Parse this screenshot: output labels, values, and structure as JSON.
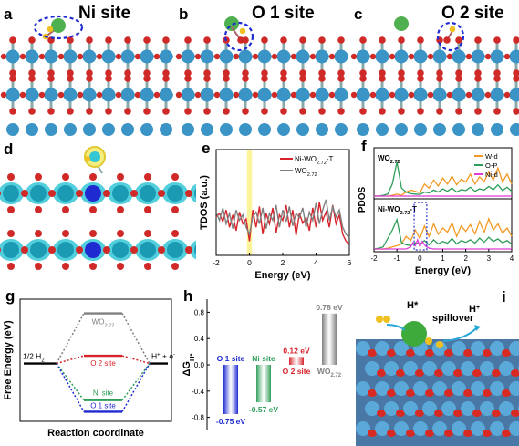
{
  "panel_a": {
    "letter": "a",
    "title": "Ni site"
  },
  "panel_b": {
    "letter": "b",
    "title": "O 1 site"
  },
  "panel_c": {
    "letter": "c",
    "title": "O 2 site"
  },
  "panel_d": {
    "letter": "d"
  },
  "colors": {
    "W": "#3a94c6",
    "O": "#d02a28",
    "Ni": "#4fb050",
    "H": "#f0c020",
    "highlight": "#1f2bd1",
    "charge": "#35c6d6"
  },
  "chart_data": [
    {
      "panel": "e",
      "type": "line",
      "ylabel": "TDOS (a.u.)",
      "xlabel": "Energy (eV)",
      "xlim": [
        -2,
        6
      ],
      "xticks": [
        -2,
        0,
        2,
        4,
        6
      ],
      "fermi_band": [
        -0.15,
        0.15
      ],
      "series": [
        {
          "name": "Ni-WO2.72-T",
          "name_main": "Ni-WO",
          "name_sub": "2.72",
          "name_tail": "-T",
          "color": "#d8232a",
          "x": [
            -2,
            -1.8,
            -1.6,
            -1.4,
            -1.2,
            -1.0,
            -0.8,
            -0.6,
            -0.4,
            -0.2,
            0,
            0.2,
            0.4,
            0.6,
            0.8,
            1.0,
            1.2,
            1.4,
            1.6,
            1.8,
            2.0,
            2.2,
            2.4,
            2.6,
            2.8,
            3.0,
            3.2,
            3.4,
            3.6,
            3.8,
            4.0,
            4.2,
            4.4,
            4.6,
            4.8,
            5.0,
            5.2,
            5.4,
            5.6,
            5.8,
            6.0
          ],
          "y": [
            0.45,
            0.5,
            0.38,
            0.55,
            0.3,
            0.48,
            0.25,
            0.52,
            0.35,
            0.42,
            0.1,
            0.55,
            0.3,
            0.6,
            0.2,
            0.5,
            0.35,
            0.58,
            0.22,
            0.48,
            0.4,
            0.62,
            0.3,
            0.55,
            0.18,
            0.5,
            0.36,
            0.44,
            0.25,
            0.58,
            0.3,
            0.66,
            0.4,
            0.52,
            0.3,
            0.62,
            0.35,
            0.48,
            0.2,
            0.1,
            0.05
          ]
        },
        {
          "name": "WO2.72",
          "name_main": "WO",
          "name_sub": "2.72",
          "name_tail": "",
          "color": "#808080",
          "x": [
            -2,
            -1.8,
            -1.6,
            -1.4,
            -1.2,
            -1.0,
            -0.8,
            -0.6,
            -0.4,
            -0.2,
            0,
            0.2,
            0.4,
            0.6,
            0.8,
            1.0,
            1.2,
            1.4,
            1.6,
            1.8,
            2.0,
            2.2,
            2.4,
            2.6,
            2.8,
            3.0,
            3.2,
            3.4,
            3.6,
            3.8,
            4.0,
            4.2,
            4.4,
            4.6,
            4.8,
            5.0,
            5.2,
            5.4,
            5.6,
            5.8,
            6.0
          ],
          "y": [
            0.52,
            0.4,
            0.58,
            0.35,
            0.5,
            0.28,
            0.55,
            0.4,
            0.48,
            0.3,
            0.2,
            0.45,
            0.52,
            0.35,
            0.58,
            0.28,
            0.5,
            0.4,
            0.62,
            0.3,
            0.55,
            0.38,
            0.6,
            0.32,
            0.5,
            0.44,
            0.58,
            0.3,
            0.52,
            0.4,
            0.65,
            0.35,
            0.55,
            0.7,
            0.4,
            0.6,
            0.45,
            0.55,
            0.3,
            0.2,
            0.15
          ]
        }
      ]
    },
    {
      "panel": "f",
      "type": "line",
      "ylabel": "PDOS",
      "xlabel": "Energy (eV)",
      "xlim": [
        -2,
        4
      ],
      "xticks": [
        -2,
        -1,
        0,
        1,
        2,
        3,
        4
      ],
      "subplots": [
        {
          "label_main": "WO",
          "label_sub": "2.72",
          "series": [
            {
              "name": "W-d",
              "color": "#f29a24",
              "x": [
                -2,
                -1.8,
                -1.6,
                -1.4,
                -1.2,
                -1.0,
                -0.8,
                -0.6,
                -0.4,
                -0.2,
                0,
                0.2,
                0.4,
                0.6,
                0.8,
                1.0,
                1.2,
                1.4,
                1.6,
                1.8,
                2.0,
                2.2,
                2.4,
                2.6,
                2.8,
                3.0,
                3.2,
                3.4,
                3.6,
                3.8,
                4.0
              ],
              "y": [
                0,
                0,
                0,
                0,
                0.02,
                0.05,
                0.02,
                0.1,
                0.15,
                0.12,
                0.08,
                0.3,
                0.2,
                0.4,
                0.25,
                0.45,
                0.3,
                0.5,
                0.28,
                0.42,
                0.35,
                0.55,
                0.3,
                0.48,
                0.36,
                0.6,
                0.4,
                0.7,
                0.35,
                0.55,
                0.3
              ]
            },
            {
              "name": "O-P",
              "color": "#2e9e5a",
              "x": [
                -2,
                -1.8,
                -1.6,
                -1.4,
                -1.2,
                -1.0,
                -0.8,
                -0.6,
                -0.4,
                -0.2,
                0,
                0.2,
                0.4,
                0.6,
                0.8,
                1.0,
                1.2,
                1.4,
                1.6,
                1.8,
                2.0,
                2.2,
                2.4,
                2.6,
                2.8,
                3.0,
                3.2,
                3.4,
                3.6,
                3.8,
                4.0
              ],
              "y": [
                0,
                0,
                0.02,
                0.05,
                0.3,
                0.85,
                0.2,
                0.1,
                0.06,
                0.05,
                0.04,
                0.1,
                0.08,
                0.15,
                0.1,
                0.18,
                0.12,
                0.2,
                0.1,
                0.16,
                0.14,
                0.22,
                0.12,
                0.18,
                0.15,
                0.24,
                0.16,
                0.28,
                0.14,
                0.22,
                0.12
              ]
            },
            {
              "name": "Ni-d",
              "color": "#e03ad8",
              "x": [
                -2,
                4
              ],
              "y": [
                0,
                0
              ]
            }
          ]
        },
        {
          "label_main": "Ni-WO",
          "label_sub": "2.72",
          "label_tail": "-T",
          "series": [
            {
              "name": "W-d",
              "color": "#f29a24",
              "x": [
                -2,
                -1.8,
                -1.6,
                -1.4,
                -1.2,
                -1.0,
                -0.8,
                -0.6,
                -0.4,
                -0.2,
                0,
                0.2,
                0.4,
                0.6,
                0.8,
                1.0,
                1.2,
                1.4,
                1.6,
                1.8,
                2.0,
                2.2,
                2.4,
                2.6,
                2.8,
                3.0,
                3.2,
                3.4,
                3.6,
                3.8,
                4.0
              ],
              "y": [
                0,
                0,
                0,
                0.02,
                0.05,
                0.08,
                0.12,
                0.3,
                0.2,
                0.45,
                0.25,
                0.55,
                0.3,
                0.6,
                0.35,
                0.5,
                0.4,
                0.62,
                0.3,
                0.55,
                0.42,
                0.58,
                0.36,
                0.66,
                0.4,
                0.72,
                0.45,
                0.6,
                0.38,
                0.5,
                0.3
              ]
            },
            {
              "name": "O-P",
              "color": "#2e9e5a",
              "x": [
                -2,
                -1.8,
                -1.6,
                -1.4,
                -1.2,
                -1.0,
                -0.8,
                -0.6,
                -0.4,
                -0.2,
                0,
                0.2,
                0.4,
                0.6,
                0.8,
                1.0,
                1.2,
                1.4,
                1.6,
                1.8,
                2.0,
                2.2,
                2.4,
                2.6,
                2.8,
                3.0,
                3.2,
                3.4,
                3.6,
                3.8,
                4.0
              ],
              "y": [
                0,
                0.02,
                0.05,
                0.25,
                0.45,
                0.7,
                0.15,
                0.1,
                0.08,
                0.15,
                0.12,
                0.2,
                0.1,
                0.22,
                0.12,
                0.18,
                0.14,
                0.25,
                0.12,
                0.2,
                0.16,
                0.22,
                0.14,
                0.26,
                0.16,
                0.28,
                0.18,
                0.24,
                0.15,
                0.2,
                0.12
              ]
            },
            {
              "name": "Ni-d",
              "color": "#e03ad8",
              "x": [
                -2,
                -0.6,
                -0.4,
                -0.3,
                -0.2,
                -0.1,
                0,
                0.1,
                0.2,
                0.3,
                0.4,
                0.6,
                4
              ],
              "y": [
                0,
                0,
                0.05,
                0.15,
                0.08,
                0.22,
                0.06,
                0.18,
                0.1,
                0.05,
                0.02,
                0,
                0
              ]
            }
          ]
        }
      ],
      "box": [
        -0.25,
        0.3
      ]
    },
    {
      "panel": "g",
      "type": "line",
      "ylabel": "Free Energy (eV)",
      "xlabel": "Reaction coordinate",
      "ylim": [
        -0.9,
        1.0
      ],
      "levels": {
        "start": 0,
        "end": 0
      },
      "start_label": "1/2 H",
      "start_sub": "2",
      "end_label": "H",
      "end_tail": " + e",
      "series": [
        {
          "name": "WO2.72",
          "label_main": "WO",
          "label_sub": "2.72",
          "value": 0.78,
          "color": "#808080"
        },
        {
          "name": "O 2 site",
          "label_main": "O 2 site",
          "value": 0.12,
          "color": "#d8232a"
        },
        {
          "name": "Ni site",
          "label_main": "Ni site",
          "value": -0.57,
          "color": "#2e9e5a"
        },
        {
          "name": "O 1 site",
          "label_main": "O 1 site",
          "value": -0.75,
          "color": "#1f2bd1"
        }
      ]
    },
    {
      "panel": "h",
      "type": "bar",
      "ylabel": "ΔG",
      "ylabel_sub": "H*",
      "ylim": [
        -1.0,
        1.0
      ],
      "categories": [
        "O 1 site",
        "Ni site",
        "O 2 site",
        "WO2.72"
      ],
      "values": [
        -0.75,
        -0.57,
        0.12,
        0.78
      ],
      "value_labels": [
        "-0.75 eV",
        "-0.57 eV",
        "0.12 eV",
        "0.78 eV"
      ],
      "cat_labels": [
        {
          "main": "O 1 site"
        },
        {
          "main": "Ni site"
        },
        {
          "main": "O 2 site"
        },
        {
          "main": "WO",
          "sub": "2.72"
        }
      ],
      "colors": [
        "#1f2bd1",
        "#2e9e5a",
        "#d8232a",
        "#808080"
      ],
      "yticks": [
        -0.8,
        -0.4,
        0.0,
        0.4,
        0.8
      ]
    }
  ],
  "panel_i": {
    "letter": "i",
    "label_hstar": "H*",
    "label_spillover": "spillover",
    "label_hplus": "H"
  }
}
